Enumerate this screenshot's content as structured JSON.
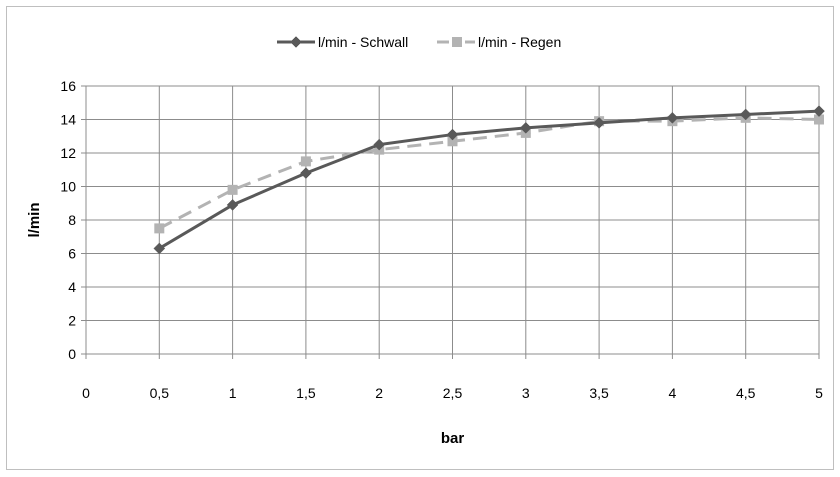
{
  "chart_data": {
    "type": "line",
    "x": [
      0.5,
      1,
      1.5,
      2,
      2.5,
      3,
      3.5,
      4,
      4.5,
      5
    ],
    "x_tick_labels": [
      "0",
      "0,5",
      "1",
      "1,5",
      "2",
      "2,5",
      "3",
      "3,5",
      "4",
      "4,5",
      "5"
    ],
    "series": [
      {
        "name": "l/min - Schwall",
        "values": [
          6.3,
          8.9,
          10.8,
          12.5,
          13.1,
          13.5,
          13.8,
          14.1,
          14.3,
          14.5
        ],
        "color": "#595959",
        "marker": "diamond",
        "dash": "solid"
      },
      {
        "name": "l/min - Regen",
        "values": [
          7.5,
          9.8,
          11.5,
          12.2,
          12.7,
          13.2,
          13.9,
          13.9,
          14.1,
          14.0
        ],
        "color": "#b3b3b3",
        "marker": "square",
        "dash": "dashed"
      }
    ],
    "xlabel": "bar",
    "ylabel": "l/min",
    "xlim": [
      0,
      5
    ],
    "ylim": [
      0,
      16
    ],
    "y_ticks": [
      0,
      2,
      4,
      6,
      8,
      10,
      12,
      14,
      16
    ],
    "grid": true,
    "legend_position": "top"
  }
}
